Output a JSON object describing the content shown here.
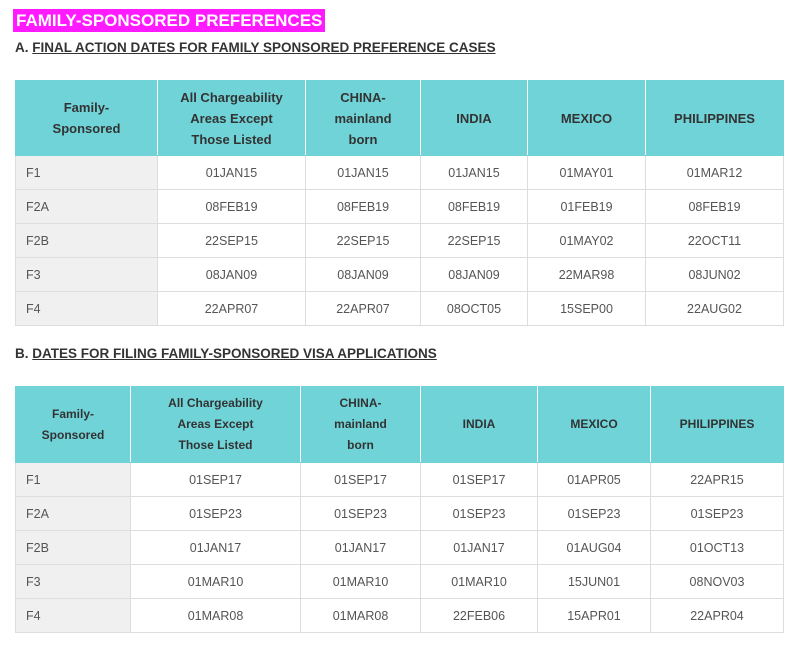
{
  "header": {
    "title": "FAMILY-SPONSORED PREFERENCES"
  },
  "sections": [
    {
      "label": "A.",
      "title": "FINAL ACTION DATES FOR FAMILY SPONSORED PREFERENCE CASES",
      "table": {
        "columns": [
          [
            "Family-",
            "Sponsored"
          ],
          [
            "All Chargeability",
            "Areas Except",
            "Those Listed"
          ],
          [
            "CHINA-",
            "mainland",
            "born"
          ],
          [
            "INDIA"
          ],
          [
            "MEXICO"
          ],
          [
            "PHILIPPINES"
          ]
        ],
        "rows": [
          [
            "F1",
            "01JAN15",
            "01JAN15",
            "01JAN15",
            "01MAY01",
            "01MAR12"
          ],
          [
            "F2A",
            "08FEB19",
            "08FEB19",
            "08FEB19",
            "01FEB19",
            "08FEB19"
          ],
          [
            "F2B",
            "22SEP15",
            "22SEP15",
            "22SEP15",
            "01MAY02",
            "22OCT11"
          ],
          [
            "F3",
            "08JAN09",
            "08JAN09",
            "08JAN09",
            "22MAR98",
            "08JUN02"
          ],
          [
            "F4",
            "22APR07",
            "22APR07",
            "08OCT05",
            "15SEP00",
            "22AUG02"
          ]
        ]
      }
    },
    {
      "label": "B.",
      "title": "DATES FOR FILING FAMILY-SPONSORED VISA APPLICATIONS",
      "table": {
        "columns": [
          [
            "Family-",
            "Sponsored"
          ],
          [
            "All Chargeability",
            "Areas Except",
            "Those Listed"
          ],
          [
            "CHINA-",
            "mainland",
            "born"
          ],
          [
            "INDIA"
          ],
          [
            "MEXICO"
          ],
          [
            "PHILIPPINES"
          ]
        ],
        "rows": [
          [
            "F1",
            "01SEP17",
            "01SEP17",
            "01SEP17",
            "01APR05",
            "22APR15"
          ],
          [
            "F2A",
            "01SEP23",
            "01SEP23",
            "01SEP23",
            "01SEP23",
            "01SEP23"
          ],
          [
            "F2B",
            "01JAN17",
            "01JAN17",
            "01JAN17",
            "01AUG04",
            "01OCT13"
          ],
          [
            "F3",
            "01MAR10",
            "01MAR10",
            "01MAR10",
            "15JUN01",
            "08NOV03"
          ],
          [
            "F4",
            "01MAR08",
            "01MAR08",
            "22FEB06",
            "15APR01",
            "22APR04"
          ]
        ]
      }
    }
  ]
}
